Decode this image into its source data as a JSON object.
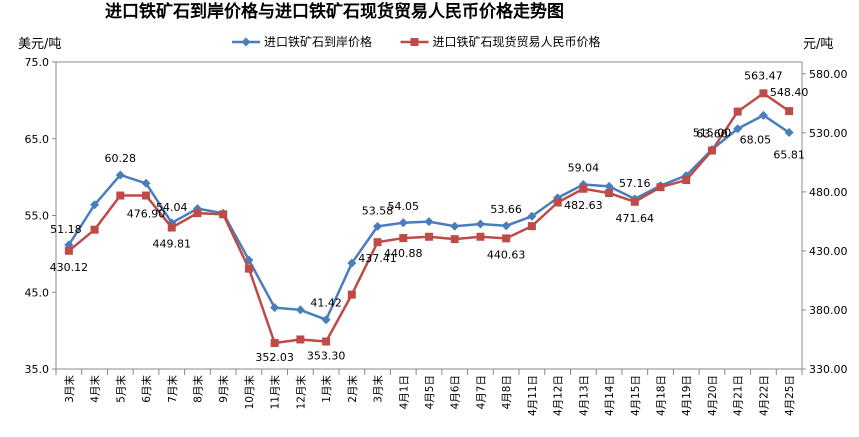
{
  "chart_data": {
    "type": "line",
    "title": "进口铁矿石到岸价格与进口铁矿石现货贸易人民币价格走势图",
    "left_unit": "美元/吨",
    "right_unit": "元/吨",
    "categories": [
      "3月末",
      "4月末",
      "5月末",
      "6月末",
      "7月末",
      "8月末",
      "9月末",
      "10月末",
      "11月末",
      "12月末",
      "1月末",
      "2月末",
      "3月末",
      "4月1日",
      "4月5日",
      "4月6日",
      "4月7日",
      "4月8日",
      "4月11日",
      "4月12日",
      "4月13日",
      "4月14日",
      "4月15日",
      "4月18日",
      "4月19日",
      "4月20日",
      "4月21日",
      "4月22日",
      "4月25日"
    ],
    "y_left": {
      "ticks": [
        "35.0",
        "45.0",
        "55.0",
        "65.0",
        "75.0"
      ],
      "min": 35,
      "max": 75
    },
    "y_right": {
      "ticks": [
        "330.00",
        "380.00",
        "430.00",
        "480.00",
        "530.00",
        "580.00"
      ],
      "min": 330,
      "max": 590
    },
    "grid": false,
    "legend_position": "top",
    "series": [
      {
        "name": "进口铁矿石到岸价格",
        "axis": "left",
        "color": "#4a7ebb",
        "marker": "diamond",
        "values": [
          51.18,
          56.4,
          60.28,
          59.2,
          54.04,
          55.9,
          55.3,
          49.2,
          43.0,
          42.7,
          41.42,
          48.8,
          53.58,
          54.05,
          54.2,
          53.6,
          53.9,
          53.66,
          54.9,
          57.3,
          59.04,
          58.8,
          57.16,
          58.9,
          60.2,
          63.6,
          66.3,
          68.05,
          65.81
        ],
        "labels": {
          "0": "51.18",
          "2": "60.28",
          "4": "54.04",
          "10": "41.42",
          "12": "53.58",
          "13": "54.05",
          "17": "53.66",
          "20": "59.04",
          "22": "57.16",
          "25": "63.60",
          "27": "68.05",
          "28": "65.81"
        }
      },
      {
        "name": "进口铁矿石现货贸易人民币价格",
        "axis": "right",
        "color": "#be4b48",
        "marker": "square",
        "values": [
          430.12,
          448.0,
          476.9,
          476.9,
          449.81,
          462.0,
          461.0,
          415.0,
          352.03,
          355.0,
          353.3,
          393.0,
          437.41,
          440.88,
          442.0,
          440.0,
          442.0,
          440.63,
          451.0,
          471.0,
          482.63,
          479.0,
          471.64,
          484.0,
          490.0,
          515.0,
          548.0,
          563.47,
          548.4
        ],
        "labels": {
          "0": "430.12",
          "3": "476.90",
          "4": "449.81",
          "8": "352.03",
          "10": "353.30",
          "12": "437.41",
          "13": "440.88",
          "17": "440.63",
          "20": "482.63",
          "22": "471.64",
          "25": "515.00",
          "27": "563.47",
          "28": "548.40"
        }
      }
    ]
  }
}
